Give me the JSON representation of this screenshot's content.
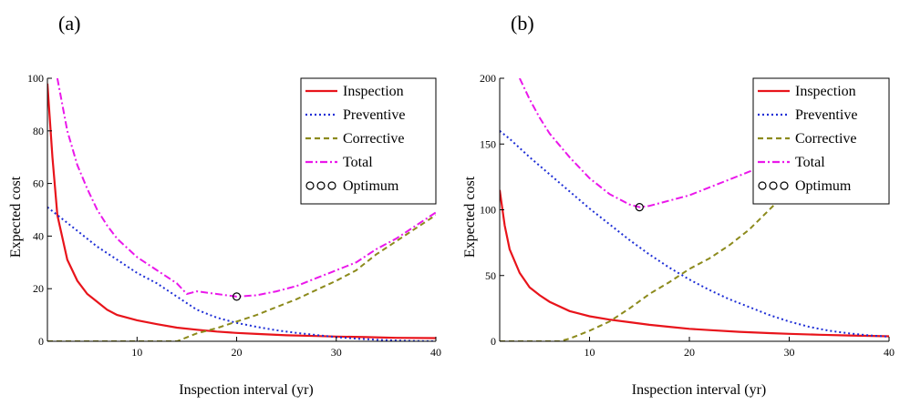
{
  "chart_data": [
    {
      "type": "line",
      "panel_label": "(a)",
      "xlabel": "Inspection interval (yr)",
      "ylabel": "Expected cost",
      "xlim": [
        1,
        40
      ],
      "ylim": [
        0,
        100
      ],
      "xticks": [
        10,
        20,
        30,
        40
      ],
      "yticks": [
        0,
        20,
        40,
        60,
        80,
        100
      ],
      "grid": false,
      "legend_position": "top-right",
      "series": [
        {
          "name": "Inspection",
          "color": "#e8141b",
          "style": "solid",
          "x": [
            1,
            1.5,
            2,
            3,
            4,
            5,
            6,
            7,
            8,
            10,
            12,
            14,
            16,
            18,
            20,
            22,
            25,
            28,
            30,
            33,
            36,
            40
          ],
          "y": [
            98,
            70,
            48,
            31,
            23,
            18,
            15,
            12,
            10,
            8,
            6.5,
            5.2,
            4.4,
            3.7,
            3.2,
            2.8,
            2.3,
            2.0,
            1.8,
            1.6,
            1.3,
            1.2
          ]
        },
        {
          "name": "Preventive",
          "color": "#1f2fd6",
          "style": "dotted",
          "x": [
            1,
            2,
            4,
            6,
            8,
            10,
            12,
            14,
            16,
            18,
            20,
            22,
            24,
            26,
            28,
            30,
            32,
            34,
            36,
            38,
            40
          ],
          "y": [
            51,
            48,
            42,
            36,
            31,
            26,
            22,
            17,
            12,
            9,
            7,
            5.5,
            4.2,
            3.2,
            2.4,
            1.6,
            1.0,
            0.6,
            0.3,
            0.1,
            0
          ]
        },
        {
          "name": "Corrective",
          "color": "#8c8a1c",
          "style": "dashed",
          "x": [
            1,
            14,
            16,
            18,
            20,
            22,
            24,
            26,
            28,
            30,
            32,
            34,
            36,
            38,
            40
          ],
          "y": [
            0,
            0,
            3,
            5,
            7.5,
            10,
            13,
            16,
            19.5,
            23,
            27,
            33,
            38,
            43,
            48
          ]
        },
        {
          "name": "Total",
          "color": "#ea18ea",
          "style": "dashdot",
          "x": [
            2,
            3,
            4,
            5,
            6,
            7,
            8,
            10,
            12,
            14,
            15,
            16,
            18,
            20,
            22,
            24,
            26,
            28,
            30,
            32,
            34,
            36,
            38,
            40
          ],
          "y": [
            100,
            80,
            67,
            58,
            50,
            44,
            39,
            32,
            27,
            22,
            18,
            19,
            18,
            17,
            17.5,
            19,
            21,
            24,
            27,
            30,
            35,
            39,
            44,
            49
          ]
        }
      ],
      "optimum": {
        "name": "Optimum",
        "x": 20,
        "y": 17
      }
    },
    {
      "type": "line",
      "panel_label": "(b)",
      "xlabel": "Inspection interval (yr)",
      "ylabel": "Expected cost",
      "xlim": [
        1,
        40
      ],
      "ylim": [
        0,
        200
      ],
      "xticks": [
        10,
        20,
        30,
        40
      ],
      "yticks": [
        0,
        50,
        100,
        150,
        200
      ],
      "grid": false,
      "legend_position": "top-right",
      "series": [
        {
          "name": "Inspection",
          "color": "#e8141b",
          "style": "solid",
          "x": [
            1,
            1.5,
            2,
            3,
            4,
            5,
            6,
            8,
            10,
            12,
            14,
            16,
            18,
            20,
            22,
            25,
            28,
            30,
            33,
            36,
            40
          ],
          "y": [
            115,
            88,
            70,
            52,
            41,
            35,
            30,
            23,
            19,
            16.5,
            14.5,
            12.5,
            11,
            9.5,
            8.5,
            7.2,
            6.2,
            5.7,
            5.0,
            4.4,
            3.8
          ]
        },
        {
          "name": "Preventive",
          "color": "#1f2fd6",
          "style": "dotted",
          "x": [
            1,
            2,
            4,
            6,
            8,
            10,
            12,
            14,
            16,
            18,
            20,
            22,
            24,
            26,
            28,
            30,
            32,
            34,
            36,
            38,
            40
          ],
          "y": [
            160,
            154,
            140,
            127,
            114,
            101,
            89,
            77,
            66,
            56,
            47,
            39,
            32,
            26,
            20,
            15,
            11,
            8,
            6,
            4.5,
            3.5
          ]
        },
        {
          "name": "Corrective",
          "color": "#8c8a1c",
          "style": "dashed",
          "x": [
            1,
            7,
            8,
            10,
            12,
            14,
            16,
            18,
            20,
            22,
            24,
            26,
            28,
            30,
            32,
            34,
            36,
            38,
            40
          ],
          "y": [
            0,
            0,
            2,
            8,
            15,
            25,
            36,
            45,
            55,
            63,
            73,
            85,
            100,
            115,
            130,
            145,
            160,
            178,
            196
          ]
        },
        {
          "name": "Total",
          "color": "#ea18ea",
          "style": "dashdot",
          "x": [
            3,
            4,
            5,
            6,
            8,
            10,
            12,
            14,
            15,
            16,
            18,
            20,
            22,
            24,
            26,
            28,
            29
          ],
          "y": [
            200,
            184,
            170,
            158,
            140,
            124,
            112,
            104,
            102,
            103,
            107,
            111,
            117,
            123,
            129,
            134,
            137
          ]
        }
      ],
      "optimum": {
        "name": "Optimum",
        "x": 15,
        "y": 102
      }
    }
  ]
}
